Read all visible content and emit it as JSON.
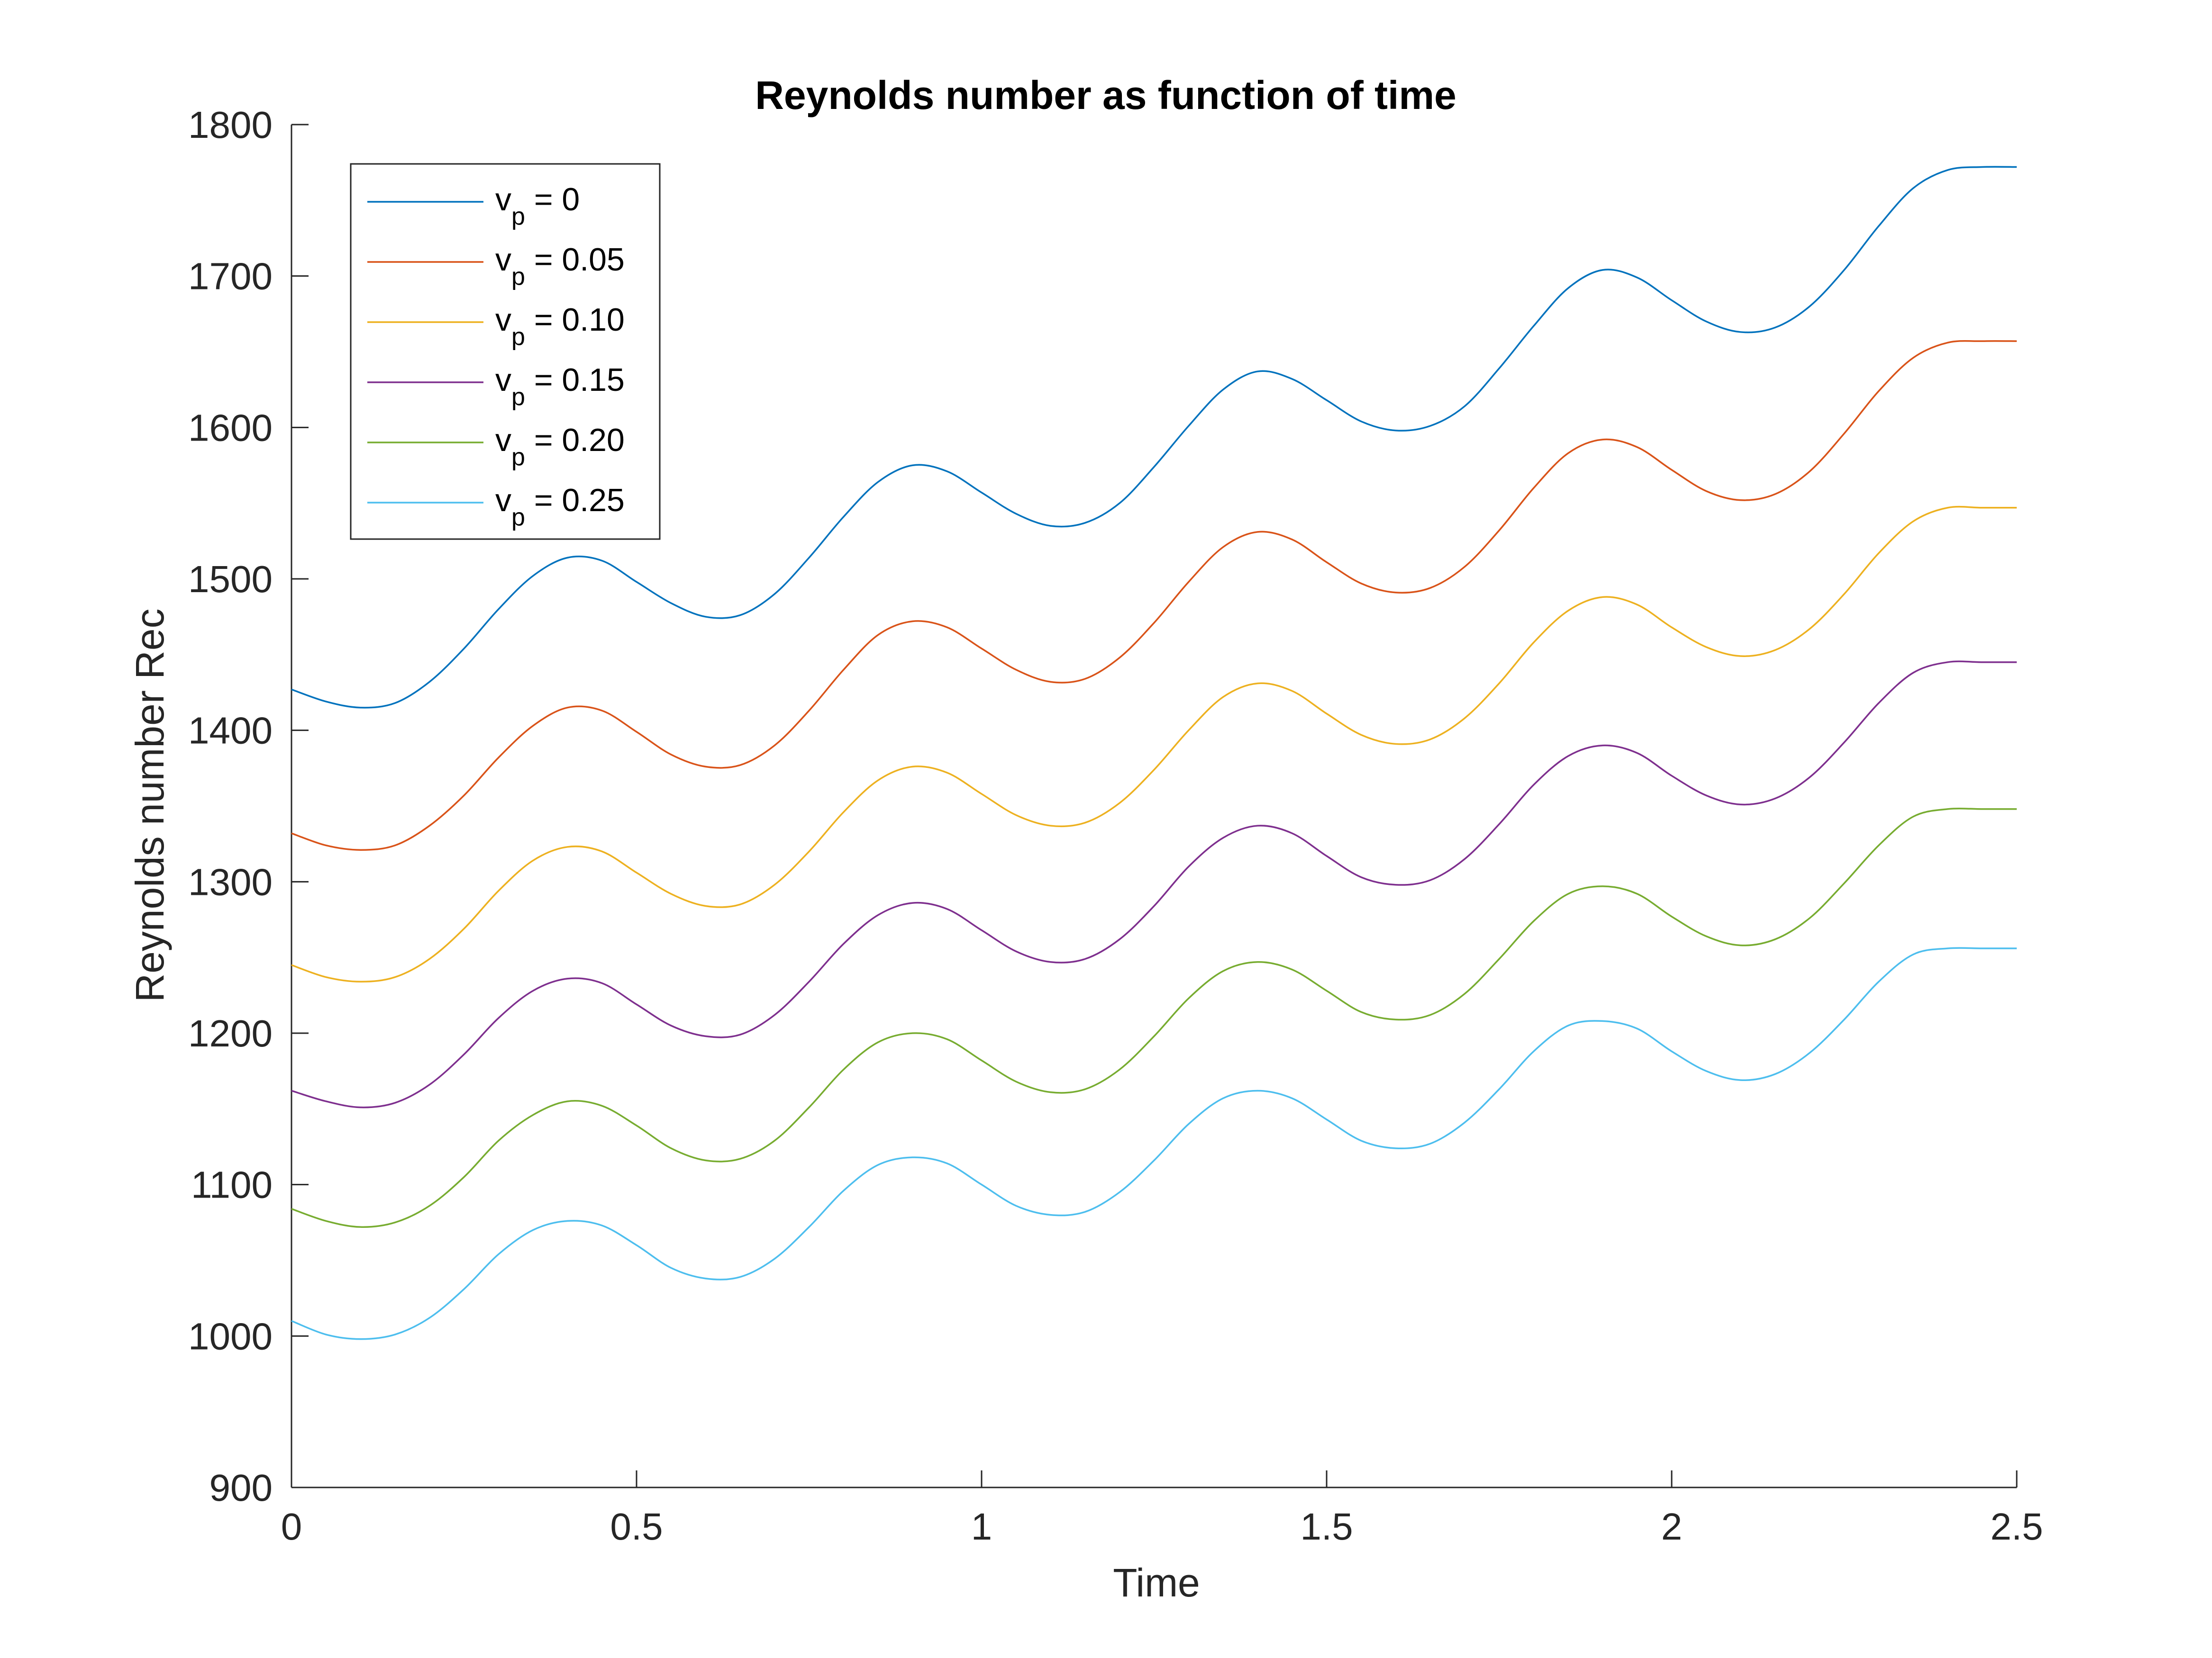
{
  "chart_data": {
    "type": "line",
    "title": "Reynolds number as function of time",
    "xlabel": "Time",
    "ylabel": "Reynolds number Rec",
    "xlim": [
      0,
      2.5
    ],
    "ylim": [
      900,
      1800
    ],
    "xticks": [
      "0",
      "0.5",
      "1",
      "1.5",
      "2",
      "2.5"
    ],
    "yticks": [
      "900",
      "1000",
      "1100",
      "1200",
      "1300",
      "1400",
      "1500",
      "1600",
      "1700",
      "1800"
    ],
    "grid": false,
    "legend_position": "top-left",
    "x": [
      0,
      0.05,
      0.1,
      0.15,
      0.2,
      0.25,
      0.3,
      0.35,
      0.4,
      0.45,
      0.5,
      0.55,
      0.6,
      0.65,
      0.7,
      0.75,
      0.8,
      0.85,
      0.9,
      0.95,
      1.0,
      1.05,
      1.1,
      1.15,
      1.2,
      1.25,
      1.3,
      1.35,
      1.4,
      1.45,
      1.5,
      1.55,
      1.6,
      1.65,
      1.7,
      1.75,
      1.8,
      1.85,
      1.9,
      1.95,
      2.0,
      2.05,
      2.1,
      2.15,
      2.2,
      2.25,
      2.3,
      2.35,
      2.4,
      2.45,
      2.5
    ],
    "series": [
      {
        "name_main": "v",
        "name_sub": "p",
        "name_rest": " = 0",
        "color": "#0072BD",
        "values": [
          1427,
          1419,
          1415,
          1418,
          1432,
          1454,
          1480,
          1502,
          1514,
          1512,
          1498,
          1484,
          1475,
          1476,
          1490,
          1514,
          1541,
          1564,
          1575,
          1571,
          1557,
          1543,
          1535,
          1537,
          1550,
          1574,
          1601,
          1625,
          1637,
          1632,
          1618,
          1604,
          1598,
          1601,
          1614,
          1639,
          1667,
          1692,
          1704,
          1699,
          1684,
          1670,
          1663,
          1666,
          1680,
          1704,
          1733,
          1758,
          1770,
          1772,
          1772
        ]
      },
      {
        "name_main": "v",
        "name_sub": "p",
        "name_rest": " = 0.05",
        "color": "#D95319",
        "values": [
          1332,
          1324,
          1321,
          1324,
          1337,
          1357,
          1382,
          1403,
          1415,
          1413,
          1399,
          1384,
          1376,
          1377,
          1390,
          1413,
          1440,
          1463,
          1472,
          1468,
          1454,
          1440,
          1432,
          1434,
          1448,
          1471,
          1498,
          1521,
          1531,
          1526,
          1511,
          1497,
          1491,
          1494,
          1508,
          1532,
          1560,
          1583,
          1592,
          1587,
          1572,
          1558,
          1552,
          1556,
          1571,
          1596,
          1624,
          1646,
          1656,
          1657,
          1657
        ]
      },
      {
        "name_main": "v",
        "name_sub": "p",
        "name_rest": " = 0.10",
        "color": "#EDB120",
        "values": [
          1245,
          1237,
          1234,
          1237,
          1249,
          1269,
          1294,
          1314,
          1323,
          1320,
          1306,
          1292,
          1284,
          1285,
          1298,
          1320,
          1346,
          1367,
          1376,
          1372,
          1358,
          1344,
          1337,
          1339,
          1352,
          1374,
          1400,
          1422,
          1431,
          1426,
          1411,
          1397,
          1391,
          1394,
          1408,
          1431,
          1458,
          1479,
          1488,
          1483,
          1468,
          1455,
          1449,
          1453,
          1467,
          1490,
          1517,
          1538,
          1547,
          1547,
          1547
        ]
      },
      {
        "name_main": "v",
        "name_sub": "p",
        "name_rest": " = 0.15",
        "color": "#7E2F8E",
        "values": [
          1162,
          1155,
          1151,
          1154,
          1166,
          1186,
          1210,
          1228,
          1236,
          1233,
          1219,
          1205,
          1198,
          1199,
          1212,
          1234,
          1259,
          1278,
          1286,
          1282,
          1268,
          1254,
          1247,
          1249,
          1262,
          1284,
          1310,
          1329,
          1337,
          1332,
          1317,
          1303,
          1298,
          1301,
          1315,
          1338,
          1364,
          1383,
          1390,
          1385,
          1370,
          1357,
          1351,
          1355,
          1369,
          1392,
          1418,
          1438,
          1445,
          1445,
          1445
        ]
      },
      {
        "name_main": "v",
        "name_sub": "p",
        "name_rest": " = 0.20",
        "color": "#77AC30",
        "values": [
          1084,
          1076,
          1072,
          1075,
          1086,
          1105,
          1129,
          1146,
          1155,
          1152,
          1139,
          1124,
          1116,
          1117,
          1129,
          1151,
          1176,
          1194,
          1200,
          1196,
          1182,
          1168,
          1161,
          1163,
          1176,
          1198,
          1223,
          1241,
          1247,
          1242,
          1228,
          1214,
          1209,
          1212,
          1226,
          1249,
          1274,
          1292,
          1297,
          1292,
          1277,
          1264,
          1258,
          1262,
          1276,
          1299,
          1324,
          1343,
          1348,
          1348,
          1348
        ]
      },
      {
        "name_main": "v",
        "name_sub": "p",
        "name_rest": " = 0.25",
        "color": "#4DBEEE",
        "values": [
          1010,
          1001,
          998,
          1001,
          1012,
          1031,
          1054,
          1070,
          1076,
          1073,
          1060,
          1045,
          1038,
          1039,
          1051,
          1072,
          1096,
          1113,
          1118,
          1114,
          1100,
          1086,
          1080,
          1082,
          1095,
          1116,
          1140,
          1157,
          1162,
          1157,
          1143,
          1129,
          1124,
          1127,
          1141,
          1163,
          1188,
          1205,
          1208,
          1203,
          1188,
          1175,
          1169,
          1173,
          1187,
          1209,
          1234,
          1252,
          1256,
          1256,
          1256
        ]
      }
    ]
  }
}
